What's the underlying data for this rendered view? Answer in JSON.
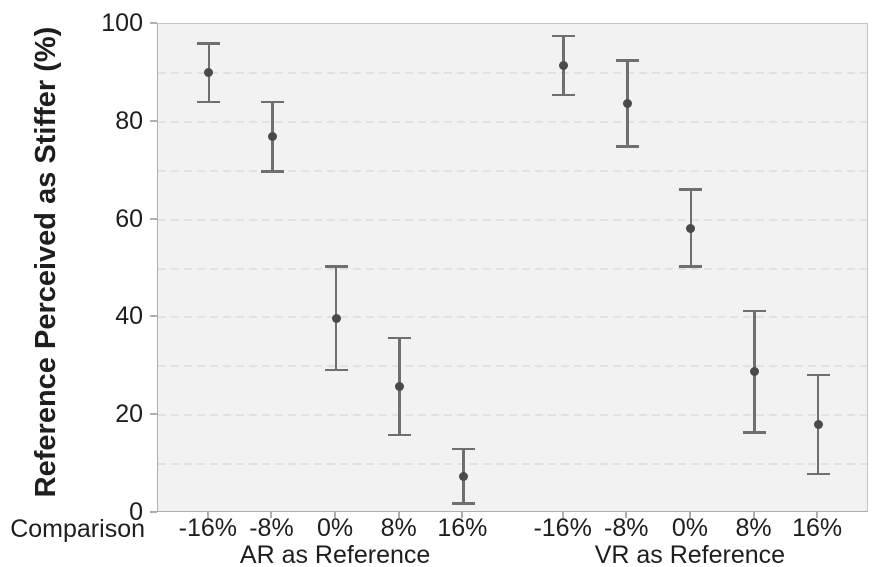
{
  "chart_data": {
    "type": "scatter",
    "title": "",
    "ylabel": "Reference Perceived as Stiffer (%)",
    "xlabel": "Comparison",
    "ylim": [
      0,
      100
    ],
    "ytick_values": [
      0,
      20,
      40,
      60,
      80,
      100
    ],
    "ytick_labels": [
      "0",
      "20",
      "40",
      "60",
      "80",
      "100"
    ],
    "ygrid_values": [
      10,
      20,
      30,
      40,
      50,
      60,
      70,
      80,
      90
    ],
    "grid": "horizontal dashed, every 10",
    "legend_position": "none",
    "marker_style": "filled circle with vertical error bars and caps",
    "categories": [
      "-16%",
      "-8%",
      "0%",
      "8%",
      "16%"
    ],
    "series": [
      {
        "name": "AR as Reference",
        "points": [
          {
            "category": "-16%",
            "mean": 90.0,
            "ci_low": 84.0,
            "ci_high": 96.0
          },
          {
            "category": "-8%",
            "mean": 77.0,
            "ci_low": 69.8,
            "ci_high": 84.1
          },
          {
            "category": "0%",
            "mean": 39.8,
            "ci_low": 29.2,
            "ci_high": 50.4
          },
          {
            "category": "8%",
            "mean": 25.8,
            "ci_low": 16.0,
            "ci_high": 35.8
          },
          {
            "category": "16%",
            "mean": 7.4,
            "ci_low": 1.9,
            "ci_high": 13.1
          }
        ]
      },
      {
        "name": "VR as Reference",
        "points": [
          {
            "category": "-16%",
            "mean": 91.5,
            "ci_low": 85.5,
            "ci_high": 97.5
          },
          {
            "category": "-8%",
            "mean": 83.8,
            "ci_low": 74.9,
            "ci_high": 92.5
          },
          {
            "category": "0%",
            "mean": 58.1,
            "ci_low": 50.4,
            "ci_high": 66.2
          },
          {
            "category": "8%",
            "mean": 29.0,
            "ci_low": 16.5,
            "ci_high": 41.3
          },
          {
            "category": "16%",
            "mean": 18.1,
            "ci_low": 8.0,
            "ci_high": 28.2
          }
        ]
      }
    ],
    "colors": {
      "marker": "#4a4a4a",
      "error_bar": "#6f6f6f",
      "plot_background": "#f2f2f3",
      "gridline": "#e1e1e3",
      "axis": "#aeaeb0",
      "text": "#1e1e1e"
    }
  }
}
